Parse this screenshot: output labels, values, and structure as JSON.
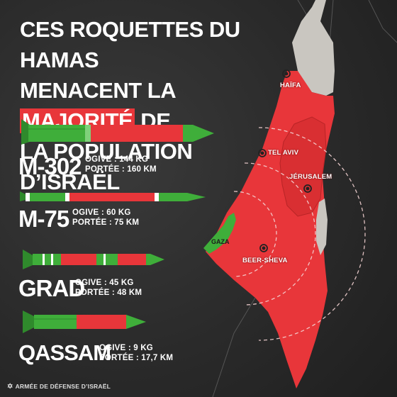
{
  "title": {
    "line1": "CES ROQUETTES DU HAMAS",
    "line2_pre": "MENACENT LA ",
    "line2_highlight": "MAJORITÉ",
    "line2_post": " DE",
    "line3": "LA POPULATION D’ISRAËL"
  },
  "rockets": [
    {
      "name": "M-302",
      "warhead": "OGIVE : 144 KG",
      "range": "PORTÉE : 160 KM"
    },
    {
      "name": "M-75",
      "warhead": "OGIVE : 60 KG",
      "range": "PORTÉE : 75 KM"
    },
    {
      "name": "GRAD",
      "warhead": "OGIVE : 45 KG",
      "range": "PORTÉE : 48 KM"
    },
    {
      "name": "QASSAM",
      "warhead": "OGIVE : 9 KG",
      "range": "PORTÉE : 17,7 KM"
    }
  ],
  "cities": {
    "haifa": "HAÏFA",
    "tel_aviv": "TEL AVIV",
    "jerusalem": "JÉRUSALEM",
    "beer_sheva": "BEER-SHEVA",
    "gaza": "GAZA"
  },
  "footer": "ARMÉE DE DÉFENSE D’ISRAËL",
  "colors": {
    "threat_red": "#e8363a",
    "rocket_green": "#3fae3a",
    "land_grey": "#c9c6c0"
  }
}
